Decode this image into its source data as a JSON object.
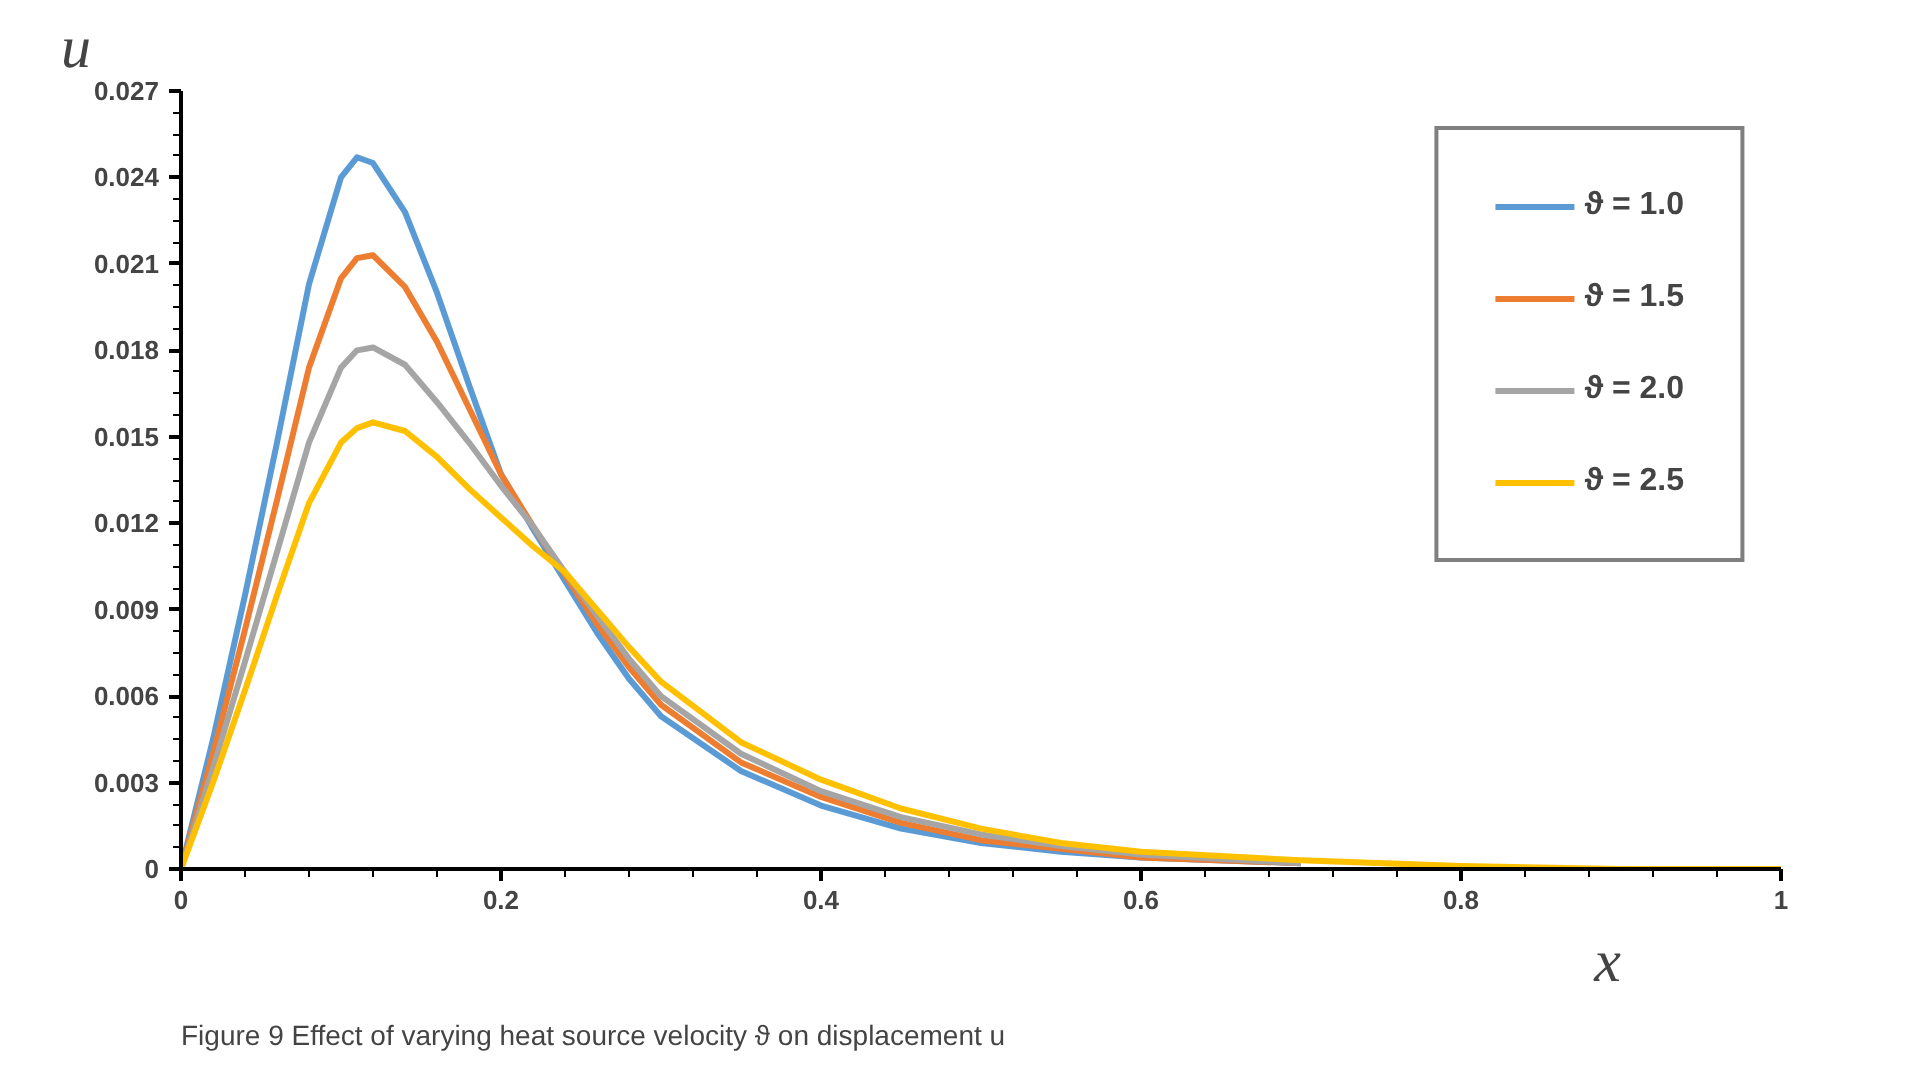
{
  "chart_data": {
    "type": "line",
    "title": "Figure 9  Effect of varying heat source velocity ϑ on displacement u",
    "xlabel": "x",
    "ylabel": "u",
    "x": [
      0,
      0.02,
      0.04,
      0.06,
      0.08,
      0.1,
      0.11,
      0.12,
      0.14,
      0.16,
      0.18,
      0.2,
      0.22,
      0.24,
      0.26,
      0.28,
      0.3,
      0.35,
      0.4,
      0.45,
      0.5,
      0.55,
      0.6,
      0.7,
      0.8,
      0.9,
      1.0
    ],
    "series": [
      {
        "name": "ϑ = 1.0",
        "color": "#5b9bd5",
        "values": [
          0,
          0.0045,
          0.0095,
          0.0148,
          0.0203,
          0.024,
          0.0247,
          0.0245,
          0.0228,
          0.02,
          0.0168,
          0.0137,
          0.0118,
          0.01,
          0.0082,
          0.0066,
          0.0053,
          0.0034,
          0.0022,
          0.0014,
          0.0009,
          0.0006,
          0.0004,
          0.0002,
          null,
          null,
          null
        ]
      },
      {
        "name": "ϑ = 1.5",
        "color": "#ed7d31",
        "values": [
          0,
          0.004,
          0.0083,
          0.0128,
          0.0174,
          0.0205,
          0.0212,
          0.0213,
          0.0202,
          0.0183,
          0.016,
          0.0137,
          0.0119,
          0.0102,
          0.0085,
          0.007,
          0.0057,
          0.0037,
          0.0025,
          0.0016,
          0.001,
          0.0007,
          0.0004,
          0.0002,
          null,
          null,
          null
        ]
      },
      {
        "name": "ϑ = 2.0",
        "color": "#a5a5a5",
        "values": [
          0,
          0.0035,
          0.0072,
          0.011,
          0.0148,
          0.0174,
          0.018,
          0.0181,
          0.0175,
          0.0162,
          0.0148,
          0.0133,
          0.0119,
          0.0103,
          0.0088,
          0.0073,
          0.006,
          0.004,
          0.0027,
          0.0018,
          0.0012,
          0.0008,
          0.0005,
          0.0002,
          null,
          null,
          null
        ]
      },
      {
        "name": "ϑ = 2.5",
        "color": "#ffc000",
        "values": [
          0,
          0.003,
          0.0062,
          0.0095,
          0.0127,
          0.0148,
          0.0153,
          0.0155,
          0.0152,
          0.0143,
          0.0132,
          0.0122,
          0.0112,
          0.0103,
          0.009,
          0.0077,
          0.0065,
          0.0044,
          0.0031,
          0.0021,
          0.0014,
          0.0009,
          0.0006,
          0.0003,
          0.0001,
          0,
          0
        ]
      }
    ],
    "xlim": [
      0,
      1
    ],
    "xticks": [
      0,
      0.2,
      0.4,
      0.6,
      0.8,
      1
    ],
    "ylim": [
      0,
      0.027
    ],
    "yticks": [
      0,
      0.003,
      0.006,
      0.009,
      0.012,
      0.015,
      0.018,
      0.021,
      0.024,
      0.027
    ],
    "grid": false,
    "legend": "top right",
    "marker": "none",
    "line_style": "solid"
  }
}
